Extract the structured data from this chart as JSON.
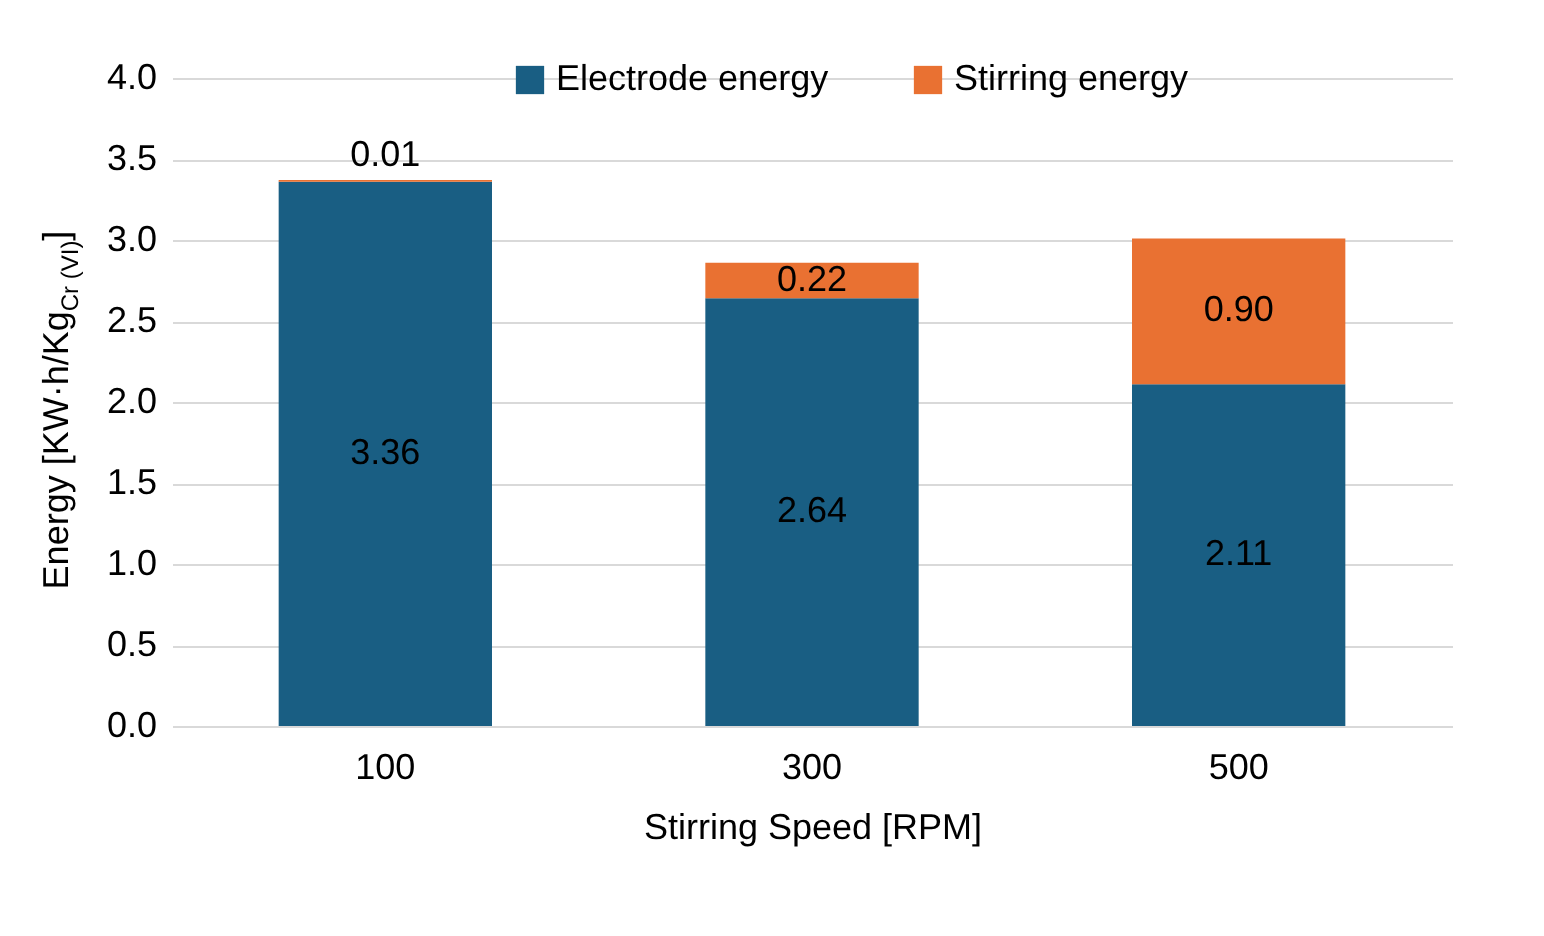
{
  "chart_data": {
    "type": "bar",
    "stacked": true,
    "xlabel": "Stirring Speed [RPM]",
    "ylabel": "Energy [KW·h/Kg$_{Cr (VI)}$]",
    "categories": [
      "100",
      "300",
      "500"
    ],
    "series": [
      {
        "name": "Electrode energy",
        "color": "#195e83",
        "values": [
          3.36,
          2.64,
          2.11
        ]
      },
      {
        "name": "Stirring energy",
        "color": "#e97132",
        "values": [
          0.01,
          0.22,
          0.9
        ]
      }
    ],
    "value_labels": [
      [
        "3.36",
        "2.64",
        "2.11"
      ],
      [
        "0.01",
        "0.22",
        "0.90"
      ]
    ],
    "ylim": [
      0,
      4
    ],
    "yticks": [
      {
        "value": 0,
        "label": "0.0"
      },
      {
        "value": 0.5,
        "label": "0.5"
      },
      {
        "value": 1,
        "label": "1.0"
      },
      {
        "value": 1.5,
        "label": "1.5"
      },
      {
        "value": 2,
        "label": "2.0"
      },
      {
        "value": 2.5,
        "label": "2.5"
      },
      {
        "value": 3,
        "label": "3.0"
      },
      {
        "value": 3.5,
        "label": "3.5"
      },
      {
        "value": 4,
        "label": "4.0"
      }
    ],
    "grid": "y",
    "legend": "top"
  }
}
